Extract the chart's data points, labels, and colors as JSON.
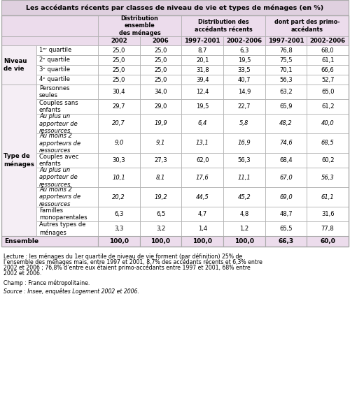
{
  "title": "Les accédants récents par classes de niveau de vie et types de ménages (en %)",
  "col_headers_line2": [
    "2002",
    "2006",
    "1997-2001",
    "2002-2006",
    "1997-2001",
    "2002-2006"
  ],
  "row_groups": [
    {
      "group_label": "Niveau\nde vie",
      "rows": [
        {
          "label": "1ᵉʳ quartile",
          "italic": false,
          "values": [
            "25,0",
            "25,0",
            "8,7",
            "6,3",
            "76,8",
            "68,0"
          ]
        },
        {
          "label": "2ᵉ quartile",
          "italic": false,
          "values": [
            "25,0",
            "25,0",
            "20,1",
            "19,5",
            "75,5",
            "61,1"
          ]
        },
        {
          "label": "3ᵉ quartile",
          "italic": false,
          "values": [
            "25,0",
            "25,0",
            "31,8",
            "33,5",
            "70,1",
            "66,6"
          ]
        },
        {
          "label": "4ᵉ quartile",
          "italic": false,
          "values": [
            "25,0",
            "25,0",
            "39,4",
            "40,7",
            "56,3",
            "52,7"
          ]
        }
      ]
    },
    {
      "group_label": "Type de\nménages",
      "rows": [
        {
          "label": "Personnes\nseules",
          "italic": false,
          "values": [
            "30,4",
            "34,0",
            "12,4",
            "14,9",
            "63,2",
            "65,0"
          ]
        },
        {
          "label": "Couples sans\nenfants",
          "italic": false,
          "values": [
            "29,7",
            "29,0",
            "19,5",
            "22,7",
            "65,9",
            "61,2"
          ]
        },
        {
          "label": "Au plus un\napporteur de\nressources",
          "italic": true,
          "values": [
            "20,7",
            "19,9",
            "6,4",
            "5,8",
            "48,2",
            "40,0"
          ]
        },
        {
          "label": "Au moins 2\napporteurs de\nressources",
          "italic": true,
          "values": [
            "9,0",
            "9,1",
            "13,1",
            "16,9",
            "74,6",
            "68,5"
          ]
        },
        {
          "label": "Couples avec\nenfants",
          "italic": false,
          "values": [
            "30,3",
            "27,3",
            "62,0",
            "56,3",
            "68,4",
            "60,2"
          ]
        },
        {
          "label": "Au plus un\napporteur de\nressources",
          "italic": true,
          "values": [
            "10,1",
            "8,1",
            "17,6",
            "11,1",
            "67,0",
            "56,3"
          ]
        },
        {
          "label": "Au moins 2\napporteurs de\nressources",
          "italic": true,
          "values": [
            "20,2",
            "19,2",
            "44,5",
            "45,2",
            "69,0",
            "61,1"
          ]
        },
        {
          "label": "Familles\nmonoparentales",
          "italic": false,
          "values": [
            "6,3",
            "6,5",
            "4,7",
            "4,8",
            "48,7",
            "31,6"
          ]
        },
        {
          "label": "Autres types de\nménages",
          "italic": false,
          "values": [
            "3,3",
            "3,2",
            "1,4",
            "1,2",
            "65,5",
            "77,8"
          ]
        }
      ]
    }
  ],
  "ensemble_row": [
    "100,0",
    "100,0",
    "100,0",
    "100,0",
    "66,3",
    "60,0"
  ],
  "footnote_lines": [
    "Lecture : les ménages du 1er quartile de niveau de vie forment (par définition) 25% de",
    "l’ensemble des ménages mais, entre 1997 et 2001, 8,7% des accédants récents et 6,3% entre",
    "2002 et 2006 ; 76,8% d’entre eux étaient primo-accédants entre 1997 et 2001, 68% entre",
    "2002 et 2006."
  ],
  "champ": "Champ : France métropolitaine.",
  "source": "Source : Insee, enquêtes Logement 2002 et 2006.",
  "title_bg": "#dfd0df",
  "header_bg": "#ecdcec",
  "group_bg": "#f5eef5",
  "data_bg": "#ffffff",
  "ensemble_bg": "#ecdcec",
  "border_color": "#aaaaaa",
  "lw": 0.5
}
